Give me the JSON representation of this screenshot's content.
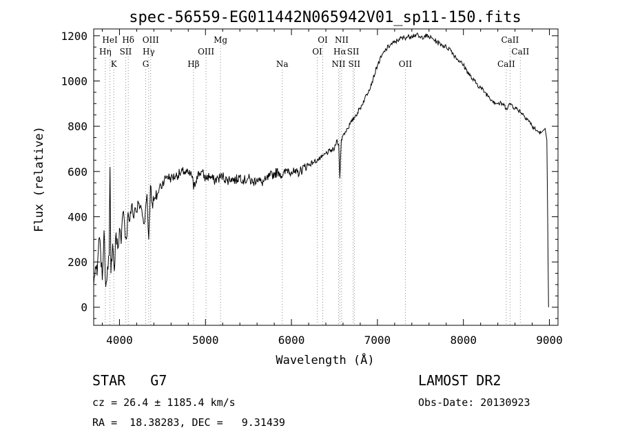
{
  "chart_data": {
    "type": "line",
    "title": "spec-56559-EG011442N065942V01_sp11-150.fits",
    "xlabel": "Wavelength (Å)",
    "ylabel": "Flux (relative)",
    "xlim": [
      3700,
      9100
    ],
    "ylim": [
      -80,
      1230
    ],
    "xticks": [
      4000,
      5000,
      6000,
      7000,
      8000,
      9000
    ],
    "yticks": [
      0,
      200,
      400,
      600,
      800,
      1000,
      1200
    ],
    "grid": false,
    "series": [
      {
        "x": [
          3700,
          3720,
          3740,
          3760,
          3780,
          3800,
          3820,
          3840,
          3860,
          3880,
          3890,
          3900,
          3920,
          3940,
          3960,
          3980,
          4000,
          4020,
          4040,
          4060,
          4080,
          4100,
          4120,
          4140,
          4160,
          4180,
          4200,
          4220,
          4240,
          4260,
          4280,
          4300,
          4320,
          4340,
          4360,
          4380,
          4400,
          4420,
          4440,
          4460,
          4480,
          4500,
          4550,
          4600,
          4650,
          4700,
          4750,
          4800,
          4850,
          4861,
          4900,
          4950,
          5000,
          5050,
          5100,
          5150,
          5200,
          5250,
          5300,
          5350,
          5400,
          5450,
          5500,
          5550,
          5600,
          5650,
          5700,
          5750,
          5800,
          5850,
          5900,
          5950,
          6000,
          6050,
          6100,
          6150,
          6200,
          6250,
          6300,
          6350,
          6400,
          6450,
          6500,
          6530,
          6550,
          6563,
          6580,
          6600,
          6650,
          6700,
          6750,
          6800,
          6850,
          6900,
          6950,
          7000,
          7050,
          7100,
          7150,
          7200,
          7250,
          7300,
          7350,
          7400,
          7450,
          7500,
          7550,
          7600,
          7650,
          7700,
          7750,
          7800,
          7850,
          7900,
          7950,
          8000,
          8050,
          8100,
          8150,
          8200,
          8250,
          8300,
          8350,
          8400,
          8450,
          8500,
          8550,
          8600,
          8650,
          8700,
          8750,
          8800,
          8850,
          8900,
          8950,
          8970,
          8980,
          8990
        ],
        "y": [
          100,
          180,
          140,
          300,
          250,
          120,
          340,
          90,
          180,
          230,
          620,
          150,
          280,
          160,
          330,
          260,
          350,
          280,
          420,
          360,
          300,
          420,
          380,
          450,
          400,
          440,
          420,
          460,
          440,
          430,
          370,
          420,
          500,
          300,
          540,
          460,
          470,
          480,
          500,
          520,
          540,
          550,
          580,
          570,
          580,
          590,
          600,
          590,
          580,
          520,
          580,
          600,
          570,
          580,
          560,
          570,
          580,
          560,
          570,
          560,
          580,
          560,
          570,
          550,
          570,
          550,
          560,
          580,
          590,
          600,
          580,
          610,
          600,
          590,
          600,
          620,
          630,
          640,
          650,
          660,
          680,
          690,
          700,
          740,
          720,
          570,
          740,
          760,
          790,
          820,
          850,
          880,
          920,
          960,
          1010,
          1070,
          1110,
          1140,
          1160,
          1170,
          1185,
          1190,
          1195,
          1200,
          1205,
          1190,
          1200,
          1195,
          1185,
          1170,
          1160,
          1150,
          1140,
          1110,
          1090,
          1070,
          1040,
          1010,
          990,
          970,
          950,
          930,
          910,
          900,
          900,
          880,
          900,
          880,
          870,
          850,
          830,
          800,
          780,
          770,
          790,
          740,
          400,
          0
        ]
      }
    ],
    "emission_lines": [
      {
        "label": "Hη",
        "x": 3835,
        "row": 1
      },
      {
        "label": "HeI",
        "x": 3889,
        "row": 0
      },
      {
        "label": "K",
        "x": 3934,
        "row": 2
      },
      {
        "label": "Hδ",
        "x": 4102,
        "row": 0
      },
      {
        "label": "SII",
        "x": 4072,
        "row": 1
      },
      {
        "label": "OIII",
        "x": 4363,
        "row": 0
      },
      {
        "label": "Hγ",
        "x": 4340,
        "row": 1
      },
      {
        "label": "G",
        "x": 4305,
        "row": 2
      },
      {
        "label": "Hβ",
        "x": 4861,
        "row": 2
      },
      {
        "label": "OIII",
        "x": 5007,
        "row": 1
      },
      {
        "label": "Mg",
        "x": 5175,
        "row": 0
      },
      {
        "label": "Na",
        "x": 5893,
        "row": 2
      },
      {
        "label": "OI",
        "x": 6364,
        "row": 0
      },
      {
        "label": "OI",
        "x": 6300,
        "row": 1
      },
      {
        "label": "NII",
        "x": 6584,
        "row": 0
      },
      {
        "label": "Hα",
        "x": 6563,
        "row": 1
      },
      {
        "label": "SII",
        "x": 6717,
        "row": 1
      },
      {
        "label": "NII",
        "x": 6548,
        "row": 2
      },
      {
        "label": "SII",
        "x": 6731,
        "row": 2
      },
      {
        "label": "OII",
        "x": 7325,
        "row": 2
      },
      {
        "label": "CaII",
        "x": 8542,
        "row": 0
      },
      {
        "label": "CaII",
        "x": 8662,
        "row": 1
      },
      {
        "label": "CaII",
        "x": 8498,
        "row": 2
      }
    ]
  },
  "footer": {
    "object_class": "STAR   G7",
    "survey": "LAMOST DR2",
    "redshift": "cz = 26.4 ± 1185.4 km/s",
    "obs_date": "Obs-Date: 20130923",
    "coords": "RA =  18.38283, DEC =   9.31439"
  }
}
